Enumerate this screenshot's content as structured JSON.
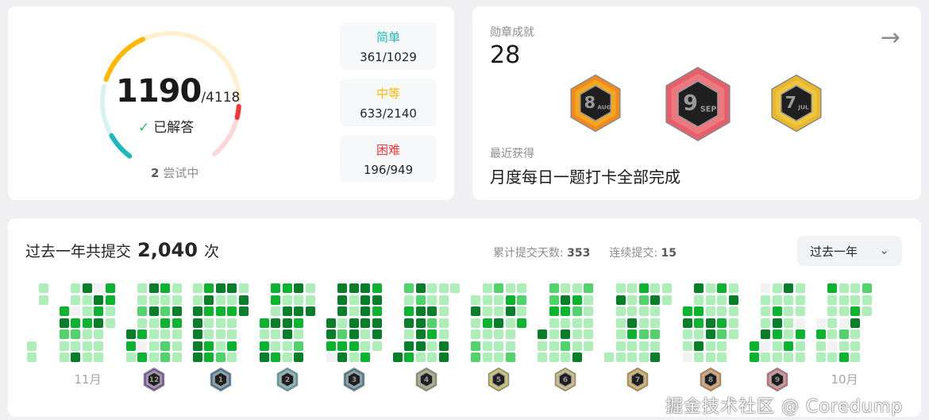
{
  "progress": {
    "solved": "1190",
    "total": "/4118",
    "solved_label": "已解答",
    "check_icon": "✓",
    "attempting_count": "2",
    "attempting_label": "尝试中",
    "difficulties": [
      {
        "label": "简单",
        "value": "361/1029",
        "solved": 361,
        "total": 1029,
        "color": "#1cbaba",
        "track": "#d9f3f1"
      },
      {
        "label": "中等",
        "value": "633/2140",
        "solved": 633,
        "total": 2140,
        "color": "#ffb800",
        "track": "#fff0d0"
      },
      {
        "label": "困难",
        "value": "196/949",
        "solved": 196,
        "total": 949,
        "color": "#f63636",
        "track": "#fdd8d8"
      }
    ]
  },
  "badges": {
    "title": "勋章成就",
    "count": "28",
    "arrow_icon": "arrow-right",
    "recent_label": "最近获得",
    "recent_name": "月度每日一题打卡全部完成",
    "showcase": [
      {
        "num": "8",
        "month": "AUG",
        "color": "#f08a1c",
        "color2": "#f5b926"
      },
      {
        "num": "9",
        "month": "SEP",
        "color": "#e5606a",
        "color2": "#f08b90"
      },
      {
        "num": "7",
        "month": "JUL",
        "color": "#e8b72a",
        "color2": "#f2cf4a"
      }
    ]
  },
  "submissions": {
    "title": "过去一年共提交",
    "count": "2,040",
    "unit": "次",
    "total_days_label": "累计提交天数:",
    "total_days": "353",
    "streak_label": "连续提交:",
    "streak": "15",
    "range": "过去一年",
    "dropdown_icon": "chevron-down",
    "level_colors": [
      "#f2f2f2",
      "#aeeeb9",
      "#4fd36a",
      "#0bb42e",
      "#067f28"
    ],
    "months": [
      {
        "label": "",
        "levels": "1111"
      },
      {
        "label": "11月",
        "levels": "342111103214411311104341113311"
      },
      {
        "label": "",
        "levels": "4311121303414111131231221143111"
      },
      {
        "label": "",
        "levels": "1144444343113341311124131131144"
      },
      {
        "label": "",
        "levels": "3134331411331444114143124114"
      },
      {
        "label": "",
        "levels": "4430444123441144314444113343441"
      },
      {
        "label": "",
        "levels": "421341434244441114231111111441"
      },
      {
        "label": "",
        "levels": "1411221113111211411113411121213"
      },
      {
        "label": "",
        "levels": "411223111114314211321114211111"
      },
      {
        "label": "",
        "levels": "1141111111143113211211141121411"
      },
      {
        "label": "",
        "levels": "3411041331411114411311321114111"
      },
      {
        "label": "",
        "levels": "330111401113431141111311110311"
      },
      {
        "label": "10月",
        "levels": "0311311110111102131134111211"
      }
    ],
    "month_badges": [
      {
        "num": "12",
        "color": "#6b3fa0"
      },
      {
        "num": "1",
        "color": "#2f6d8f"
      },
      {
        "num": "2",
        "color": "#4aa3a8"
      },
      {
        "num": "3",
        "color": "#2e7485"
      },
      {
        "num": "4",
        "color": "#8a9a5b"
      },
      {
        "num": "5",
        "color": "#c8c040"
      },
      {
        "num": "6",
        "color": "#c9b45a"
      },
      {
        "num": "7",
        "color": "#d9a22a"
      },
      {
        "num": "8",
        "color": "#e08a2c"
      },
      {
        "num": "9",
        "color": "#d9646c"
      }
    ]
  },
  "watermark": "掘金技术社区 @ Coredump"
}
